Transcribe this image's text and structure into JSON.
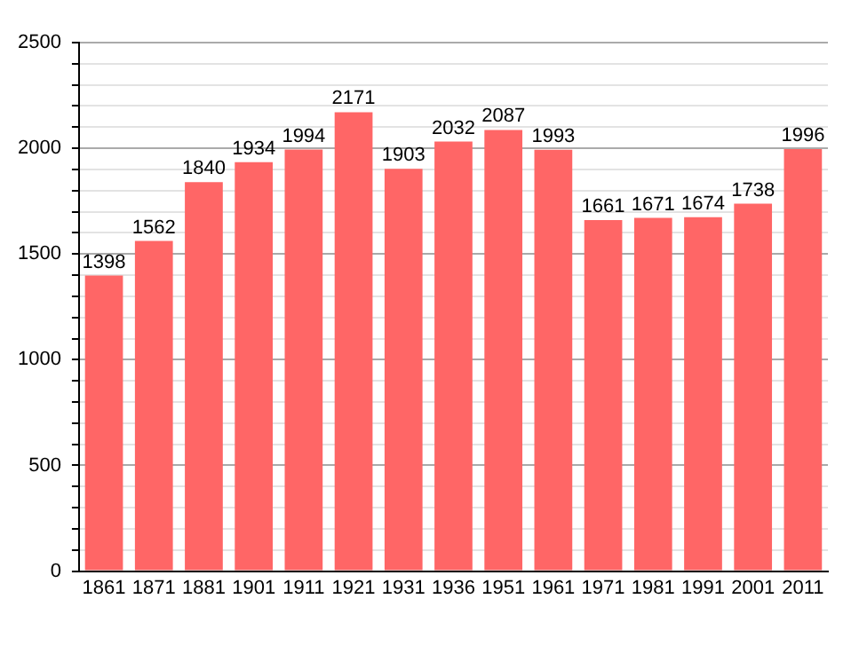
{
  "chart_data": {
    "type": "bar",
    "categories": [
      "1861",
      "1871",
      "1881",
      "1901",
      "1911",
      "1921",
      "1931",
      "1936",
      "1951",
      "1961",
      "1971",
      "1981",
      "1991",
      "2001",
      "2011"
    ],
    "values": [
      1398,
      1562,
      1840,
      1934,
      1994,
      2171,
      1903,
      2032,
      2087,
      1993,
      1661,
      1671,
      1674,
      1738,
      1996
    ],
    "color": "#ff6666",
    "ylim": [
      0,
      2500
    ],
    "yticks": [
      0,
      {
        "value": 100,
        "label": null
      },
      {
        "value": 200,
        "label": null
      },
      {
        "value": 300,
        "label": null
      },
      {
        "value": 400,
        "label": null
      },
      500,
      {
        "value": 600,
        "label": null
      },
      {
        "value": 700,
        "label": null
      },
      {
        "value": 800,
        "label": null
      },
      {
        "value": 900,
        "label": null
      },
      1000,
      {
        "value": 1100,
        "label": null
      },
      {
        "value": 1200,
        "label": null
      },
      {
        "value": 1300,
        "label": null
      },
      {
        "value": 1400,
        "label": null
      },
      1500,
      {
        "value": 1600,
        "label": null
      },
      {
        "value": 1700,
        "label": null
      },
      {
        "value": 1800,
        "label": null
      },
      {
        "value": 1900,
        "label": null
      },
      2000,
      {
        "value": 2100,
        "label": null
      },
      {
        "value": 2200,
        "label": null
      },
      {
        "value": 2300,
        "label": null
      },
      {
        "value": 2400,
        "label": null
      },
      2500
    ],
    "grid": "y",
    "data_labels": true,
    "legend": false
  }
}
